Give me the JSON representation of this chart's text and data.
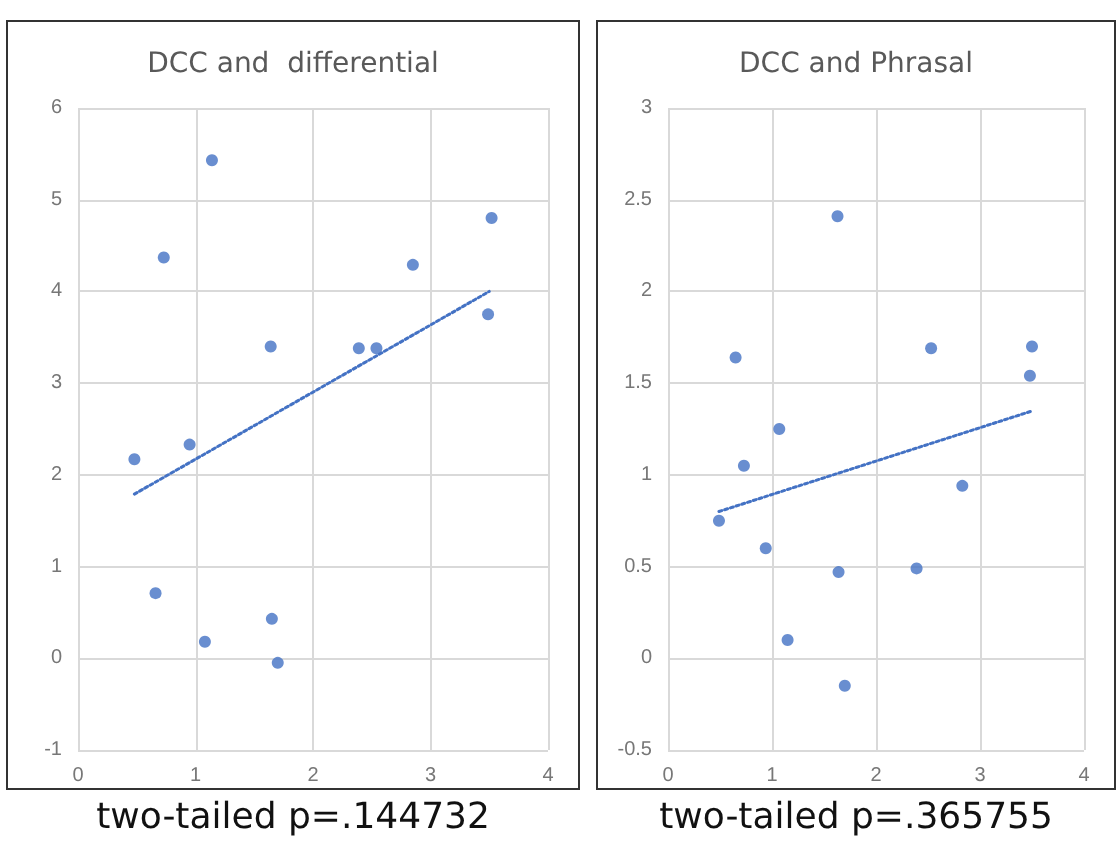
{
  "chart_data": [
    {
      "type": "scatter",
      "title": "DCC and  differential",
      "x": [
        1.14,
        0.73,
        3.52,
        2.85,
        3.49,
        1.64,
        2.39,
        2.54,
        0.95,
        0.48,
        0.66,
        1.08,
        1.65,
        1.7
      ],
      "series": [
        {
          "color": "#4472c4",
          "marker": "circle",
          "values": [
            5.43,
            4.37,
            4.8,
            4.29,
            3.75,
            3.4,
            3.38,
            3.38,
            2.33,
            2.17,
            0.71,
            0.18,
            0.43,
            -0.05
          ]
        },
        {
          "type": "line",
          "color": "#4472c4",
          "marker": "none",
          "line_style": "dotted",
          "x": [
            0.48,
            3.5
          ],
          "values": [
            1.79,
            4.0
          ]
        }
      ],
      "xlim": [
        0,
        4
      ],
      "xticks": [
        0,
        1,
        2,
        3,
        4
      ],
      "ylim": [
        -1,
        6
      ],
      "yticks": [
        -1,
        0,
        1,
        2,
        3,
        4,
        5,
        6
      ],
      "grid": true,
      "annotations": [
        "two-tailed p=.144732"
      ]
    },
    {
      "type": "scatter",
      "title": "DCC and Phrasal",
      "x": [
        1.63,
        0.65,
        2.53,
        3.5,
        3.48,
        1.07,
        0.73,
        2.83,
        0.49,
        0.94,
        1.64,
        2.39,
        1.15,
        1.7
      ],
      "series": [
        {
          "color": "#4472c4",
          "marker": "circle",
          "values": [
            2.41,
            1.64,
            1.69,
            1.7,
            1.54,
            1.25,
            1.05,
            0.94,
            0.75,
            0.6,
            0.47,
            0.49,
            0.1,
            -0.15
          ]
        },
        {
          "type": "line",
          "color": "#4472c4",
          "marker": "none",
          "line_style": "dotted",
          "x": [
            0.49,
            3.51
          ],
          "values": [
            0.8,
            1.35
          ]
        }
      ],
      "xlim": [
        0,
        4
      ],
      "xticks": [
        0,
        1,
        2,
        3,
        4
      ],
      "ylim": [
        -0.5,
        3
      ],
      "yticks": [
        -0.5,
        0,
        0.5,
        1,
        1.5,
        2,
        2.5,
        3
      ],
      "grid": true,
      "annotations": [
        "two-tailed p=.365755"
      ]
    }
  ]
}
